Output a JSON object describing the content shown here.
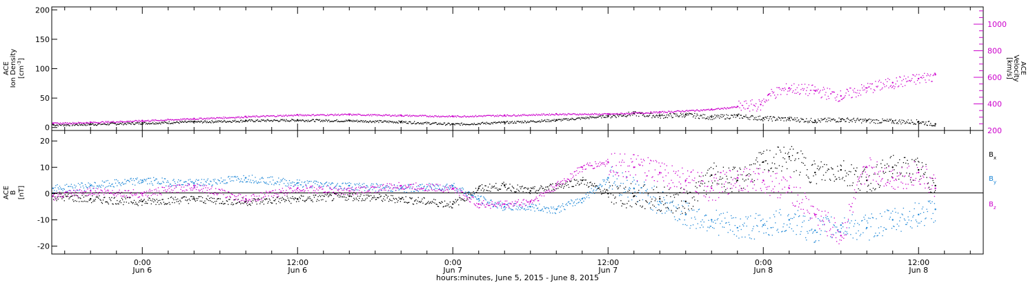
{
  "x_axis": {
    "title": "hours:minutes, June  5, 2015 - June  8, 2015",
    "ticks": [
      {
        "time": "0:00",
        "date": "Jun 6",
        "hours": 0
      },
      {
        "time": "12:00",
        "date": "Jun 6",
        "hours": 12
      },
      {
        "time": "0:00",
        "date": "Jun 7",
        "hours": 24
      },
      {
        "time": "12:00",
        "date": "Jun 7",
        "hours": 36
      },
      {
        "time": "0:00",
        "date": "Jun 8",
        "hours": 48
      },
      {
        "time": "12:00",
        "date": "Jun 8",
        "hours": 60
      }
    ],
    "range_hours": [
      -7,
      65
    ]
  },
  "top_panel": {
    "left_axis": {
      "line1": "ACE",
      "line2": "Ion Density",
      "line3": "[cm",
      "exp": "-3",
      "close": "]",
      "ticks": [
        "0",
        "50",
        "100",
        "150",
        "200"
      ],
      "range": [
        -5,
        205
      ]
    },
    "right_axis": {
      "line1": "ACE",
      "line2": "Velocity",
      "line3": "[km/s]",
      "ticks": [
        "200",
        "400",
        "600",
        "800",
        "1000"
      ],
      "range": [
        200,
        1130
      ],
      "color": "#cc00cc"
    }
  },
  "bottom_panel": {
    "left_axis": {
      "line1": "ACE",
      "line2": "B",
      "line3": "[nT]",
      "ticks": [
        "-20",
        "-10",
        "0",
        "10",
        "20"
      ],
      "range": [
        -23,
        24
      ]
    },
    "legend": [
      {
        "base": "B",
        "sub": "x",
        "color": "#000000"
      },
      {
        "base": "B",
        "sub": "y",
        "color": "#1a85d6"
      },
      {
        "base": "B",
        "sub": "z",
        "color": "#cc00cc"
      }
    ]
  },
  "chart_data": [
    {
      "type": "scatter",
      "panel": "top",
      "x_units": "hours since 2015-06-06 00:00 UT",
      "series": [
        {
          "name": "Ion Density",
          "axis": "left",
          "color": "#000000",
          "x": [
            -6.9,
            -4,
            0,
            4,
            8,
            12,
            16,
            20,
            24,
            28,
            32,
            36,
            38,
            40,
            42,
            44,
            46,
            48,
            50,
            52,
            54,
            56,
            58,
            60,
            61.3
          ],
          "y": [
            5,
            6,
            8,
            10,
            12,
            13,
            12,
            10,
            6,
            9,
            13,
            20,
            24,
            20,
            22,
            18,
            20,
            16,
            15,
            12,
            14,
            12,
            11,
            10,
            6
          ]
        },
        {
          "name": "Velocity",
          "axis": "right",
          "color": "#cc00cc",
          "x": [
            -6.9,
            -4,
            0,
            4,
            8,
            12,
            16,
            20,
            24,
            28,
            32,
            36,
            40,
            44,
            46,
            47.8,
            48.4,
            50,
            52,
            54,
            56,
            58,
            60,
            61.3
          ],
          "y": [
            255,
            262,
            275,
            290,
            305,
            318,
            322,
            315,
            308,
            315,
            325,
            325,
            340,
            360,
            380,
            395,
            470,
            520,
            500,
            460,
            520,
            560,
            590,
            620
          ]
        }
      ]
    },
    {
      "type": "scatter",
      "panel": "bottom",
      "x_units": "hours since 2015-06-06 00:00 UT",
      "series": [
        {
          "name": "Bx",
          "color": "#000000",
          "x": [
            -6.9,
            -4,
            0,
            4,
            8,
            12,
            16,
            20,
            24,
            26,
            28,
            30,
            32,
            34,
            36,
            38,
            40,
            42,
            44,
            46,
            48,
            50,
            52,
            54,
            56,
            58,
            60,
            61.3
          ],
          "y": [
            -1,
            -2,
            -3,
            -2,
            -3,
            -2,
            -1,
            -2,
            -4,
            2,
            3,
            1,
            3,
            5,
            0,
            -1,
            -2,
            -3,
            7,
            5,
            12,
            14,
            8,
            9,
            5,
            10,
            9,
            3
          ]
        },
        {
          "name": "By",
          "color": "#1a85d6",
          "x": [
            -6.9,
            -4,
            0,
            4,
            8,
            12,
            16,
            20,
            24,
            26,
            28,
            30,
            32,
            34,
            36,
            38,
            40,
            42,
            44,
            46,
            48,
            50,
            52,
            54,
            56,
            58,
            60,
            61.3
          ],
          "y": [
            2,
            3,
            5,
            4,
            6,
            4,
            3,
            2,
            3,
            -2,
            -5,
            -5,
            -6,
            -2,
            6,
            2,
            -3,
            -8,
            -10,
            -13,
            -12,
            -10,
            -14,
            -12,
            -13,
            -10,
            -8,
            -6
          ]
        },
        {
          "name": "Bz",
          "color": "#cc00cc",
          "x": [
            -6.9,
            -4,
            0,
            4,
            8,
            12,
            16,
            20,
            24,
            26,
            28,
            30,
            32,
            34,
            36,
            38,
            40,
            42,
            44,
            46,
            48,
            50,
            52,
            54,
            56,
            58,
            60,
            61.3
          ],
          "y": [
            -1,
            1,
            0,
            3,
            -2,
            2,
            1,
            3,
            2,
            -4,
            -4,
            -3,
            3,
            10,
            12,
            10,
            8,
            5,
            2,
            6,
            5,
            2,
            -8,
            -16,
            10,
            6,
            8,
            2
          ]
        }
      ]
    }
  ]
}
